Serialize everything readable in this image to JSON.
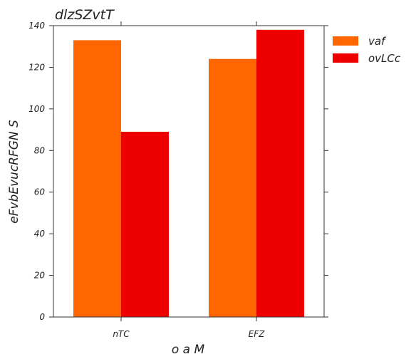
{
  "chart_data": {
    "type": "bar",
    "title": "dlzSZvtT",
    "xlabel": "o  a M",
    "ylabel": "eFvbEvucRFGN S",
    "categories": [
      "nTC",
      "EFZ"
    ],
    "series": [
      {
        "name": "vaf",
        "color": "#ff6600",
        "values": [
          133,
          124
        ]
      },
      {
        "name": "ovLCc",
        "color": "#ee0000",
        "values": [
          89,
          138
        ]
      }
    ],
    "ylim": [
      0,
      140
    ],
    "yticks": [
      0,
      20,
      40,
      60,
      80,
      100,
      120,
      140
    ],
    "grid": false,
    "legend": "outside-top-right"
  }
}
